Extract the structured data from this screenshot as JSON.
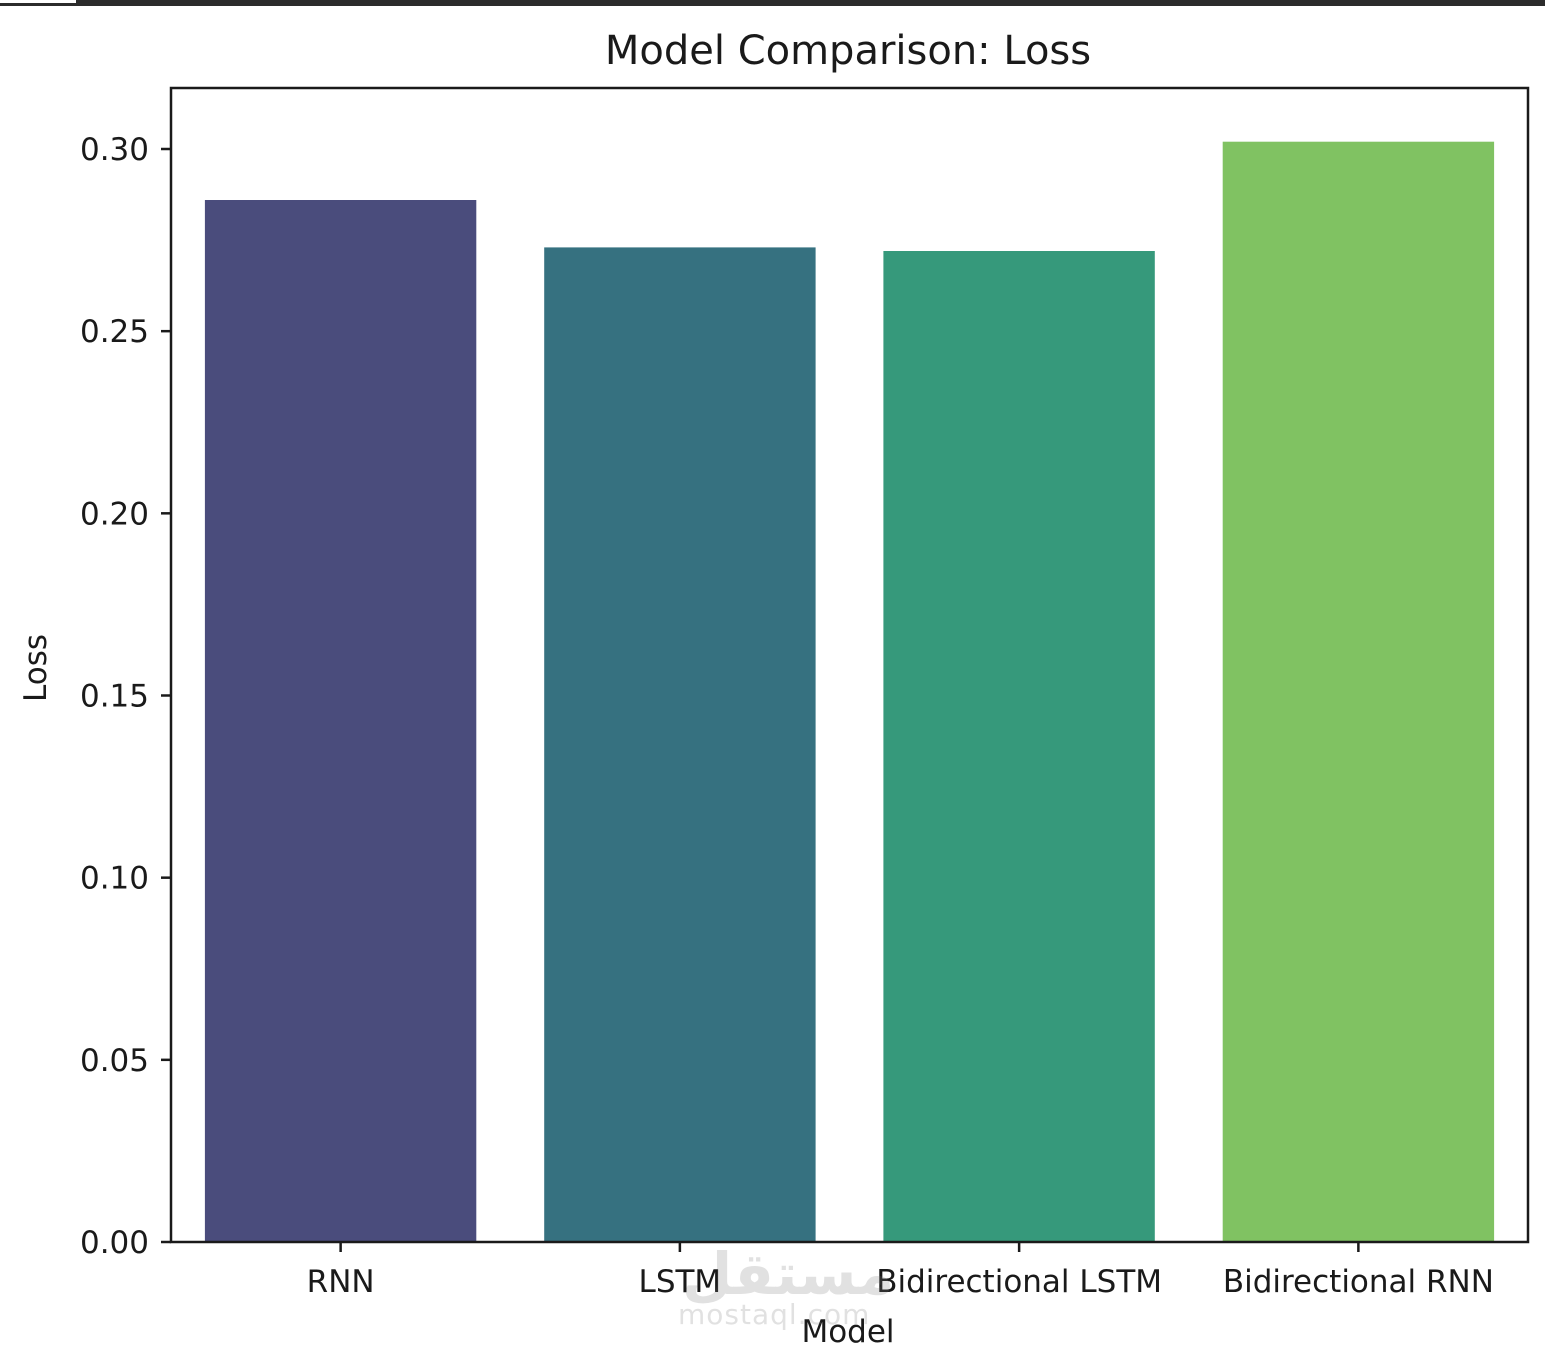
{
  "chart_data": {
    "type": "bar",
    "title": "Model Comparison: Loss",
    "xlabel": "Model",
    "ylabel": "Loss",
    "categories": [
      "RNN",
      "LSTM",
      "Bidirectional LSTM",
      "Bidirectional RNN"
    ],
    "values": [
      0.286,
      0.273,
      0.272,
      0.302
    ],
    "colors": [
      "#4a4c7c",
      "#367180",
      "#36997b",
      "#80c262"
    ],
    "ylim": [
      0,
      0.3175
    ],
    "yticks": [
      {
        "value": 0.0,
        "label": "0.00"
      },
      {
        "value": 0.05,
        "label": "0.05"
      },
      {
        "value": 0.1,
        "label": "0.10"
      },
      {
        "value": 0.15,
        "label": "0.15"
      },
      {
        "value": 0.2,
        "label": "0.20"
      },
      {
        "value": 0.25,
        "label": "0.25"
      },
      {
        "value": 0.3,
        "label": "0.30"
      }
    ],
    "grid": false,
    "legend": "none"
  },
  "watermark": {
    "logo": "مستقل",
    "text": "mostaql.com"
  }
}
